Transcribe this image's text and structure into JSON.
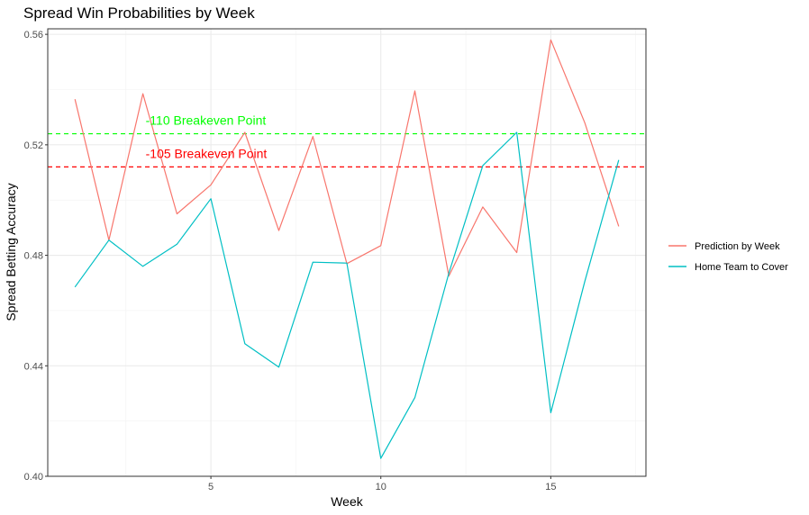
{
  "chart_data": {
    "type": "line",
    "title": "Spread Win Probabilities by Week",
    "xlabel": "Week",
    "ylabel": "Spread Betting Accuracy",
    "xlim": [
      0.2,
      17.8
    ],
    "ylim": [
      0.4,
      0.562
    ],
    "x_ticks": [
      5,
      10,
      15
    ],
    "x_tick_labels": [
      "5",
      "10",
      "15"
    ],
    "y_ticks": [
      0.4,
      0.44,
      0.48,
      0.52,
      0.56
    ],
    "y_tick_labels": [
      "0.40",
      "0.44",
      "0.48",
      "0.52",
      "0.56"
    ],
    "grid": true,
    "legend_position": "right",
    "x": [
      1,
      2,
      3,
      4,
      5,
      6,
      7,
      8,
      9,
      10,
      11,
      12,
      13,
      14,
      15,
      16,
      17
    ],
    "series": [
      {
        "name": "Prediction by Week",
        "color": "#F8766D",
        "values": [
          0.5365,
          0.4855,
          0.5385,
          0.495,
          0.5055,
          0.5245,
          0.489,
          0.523,
          0.477,
          0.4835,
          0.5395,
          0.4725,
          0.4975,
          0.481,
          0.558,
          0.528,
          0.4905
        ]
      },
      {
        "name": "Home Team to Cover",
        "color": "#00BFC4",
        "values": [
          0.4685,
          0.4855,
          0.476,
          0.484,
          0.5005,
          0.448,
          0.4395,
          0.4775,
          0.4772,
          0.4065,
          0.4285,
          0.4735,
          0.5125,
          0.5245,
          0.423,
          0.4705,
          0.5145
        ]
      }
    ],
    "reference_lines": [
      {
        "label": "-110 Breakeven Point",
        "value": 0.524,
        "color": "#00FF00",
        "style": "dashed"
      },
      {
        "label": "-105 Breakeven Point",
        "value": 0.512,
        "color": "#FF0000",
        "style": "dashed"
      }
    ]
  }
}
